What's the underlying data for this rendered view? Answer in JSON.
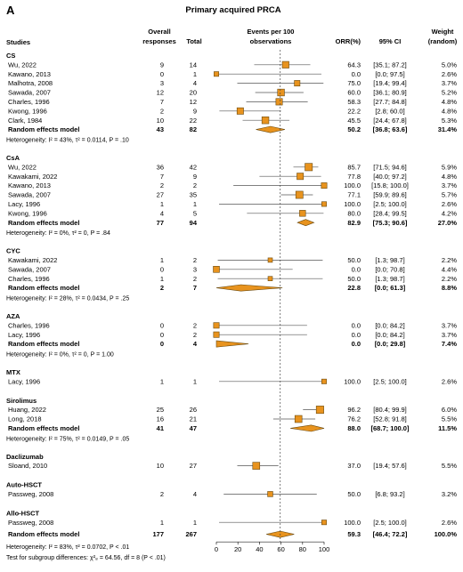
{
  "panel_letter": "A",
  "chart_data": {
    "type": "forest",
    "title": "Primary acquired PRCA",
    "headers": {
      "studies": "Studies",
      "overall_1": "Overall",
      "overall_2": "responses",
      "total": "Total",
      "events_1": "Events per 100",
      "events_2": "observations",
      "orr": "ORR(%)",
      "ci": "95% CI",
      "weight_1": "Weight",
      "weight_2": "(random)"
    },
    "x_axis": {
      "xlim": [
        0,
        100
      ],
      "ticks": [
        "0",
        "20",
        "40",
        "60",
        "80",
        "100"
      ],
      "reference_line": 59.3
    },
    "groups": [
      {
        "name": "CS",
        "studies": [
          {
            "study": "Wu, 2022",
            "events": "9",
            "total": "14",
            "orr": "64.3",
            "ci": "[35.1; 87.2]",
            "weight": "5.0%",
            "est": 64.3,
            "lo": 35.1,
            "hi": 87.2
          },
          {
            "study": "Kawano, 2013",
            "events": "0",
            "total": "1",
            "orr": "0.0",
            "ci": "[0.0; 97.5]",
            "weight": "2.6%",
            "est": 0.0,
            "lo": 0.0,
            "hi": 97.5
          },
          {
            "study": "Malhotra, 2008",
            "events": "3",
            "total": "4",
            "orr": "75.0",
            "ci": "[19.4; 99.4]",
            "weight": "3.7%",
            "est": 75.0,
            "lo": 19.4,
            "hi": 99.4
          },
          {
            "study": "Sawada, 2007",
            "events": "12",
            "total": "20",
            "orr": "60.0",
            "ci": "[36.1; 80.9]",
            "weight": "5.2%",
            "est": 60.0,
            "lo": 36.1,
            "hi": 80.9
          },
          {
            "study": "Charles, 1996",
            "events": "7",
            "total": "12",
            "orr": "58.3",
            "ci": "[27.7; 84.8]",
            "weight": "4.8%",
            "est": 58.3,
            "lo": 27.7,
            "hi": 84.8
          },
          {
            "study": "Kwong, 1996",
            "events": "2",
            "total": "9",
            "orr": "22.2",
            "ci": "[2.8; 60.0]",
            "weight": "4.8%",
            "est": 22.2,
            "lo": 2.8,
            "hi": 60.0
          },
          {
            "study": "Clark, 1984",
            "events": "10",
            "total": "22",
            "orr": "45.5",
            "ci": "[24.4; 67.8]",
            "weight": "5.3%",
            "est": 45.5,
            "lo": 24.4,
            "hi": 67.8
          }
        ],
        "pooled": {
          "label": "Random effects model",
          "events": "43",
          "total": "82",
          "orr": "50.2",
          "ci": "[36.8; 63.6]",
          "weight": "31.4%",
          "est": 50.2,
          "lo": 36.8,
          "hi": 63.6
        },
        "heterogeneity": "Heterogeneity: I² = 43%, τ² = 0.0114, P = .10"
      },
      {
        "name": "CsA",
        "studies": [
          {
            "study": "Wu, 2022",
            "events": "36",
            "total": "42",
            "orr": "85.7",
            "ci": "[71.5; 94.6]",
            "weight": "5.9%",
            "est": 85.7,
            "lo": 71.5,
            "hi": 94.6
          },
          {
            "study": "Kawakami, 2022",
            "events": "7",
            "total": "9",
            "orr": "77.8",
            "ci": "[40.0; 97.2]",
            "weight": "4.8%",
            "est": 77.8,
            "lo": 40.0,
            "hi": 97.2
          },
          {
            "study": "Kawano, 2013",
            "events": "2",
            "total": "2",
            "orr": "100.0",
            "ci": "[15.8; 100.0]",
            "weight": "3.7%",
            "est": 100.0,
            "lo": 15.8,
            "hi": 100.0
          },
          {
            "study": "Sawada, 2007",
            "events": "27",
            "total": "35",
            "orr": "77.1",
            "ci": "[59.9; 89.6]",
            "weight": "5.7%",
            "est": 77.1,
            "lo": 59.9,
            "hi": 89.6
          },
          {
            "study": "Lacy, 1996",
            "events": "1",
            "total": "1",
            "orr": "100.0",
            "ci": "[2.5; 100.0]",
            "weight": "2.6%",
            "est": 100.0,
            "lo": 2.5,
            "hi": 100.0
          },
          {
            "study": "Kwong, 1996",
            "events": "4",
            "total": "5",
            "orr": "80.0",
            "ci": "[28.4; 99.5]",
            "weight": "4.2%",
            "est": 80.0,
            "lo": 28.4,
            "hi": 99.5
          }
        ],
        "pooled": {
          "label": "Random effects model",
          "events": "77",
          "total": "94",
          "orr": "82.9",
          "ci": "[75.3; 90.6]",
          "weight": "27.0%",
          "est": 82.9,
          "lo": 75.3,
          "hi": 90.6
        },
        "heterogeneity": "Heterogeneity: I² = 0%, τ² = 0, P = .84"
      },
      {
        "name": "CYC",
        "studies": [
          {
            "study": "Kawakami, 2022",
            "events": "1",
            "total": "2",
            "orr": "50.0",
            "ci": "[1.3; 98.7]",
            "weight": "2.2%",
            "est": 50.0,
            "lo": 1.3,
            "hi": 98.7
          },
          {
            "study": "Sawada, 2007",
            "events": "0",
            "total": "3",
            "orr": "0.0",
            "ci": "[0.0; 70.8]",
            "weight": "4.4%",
            "est": 0.0,
            "lo": 0.0,
            "hi": 70.8
          },
          {
            "study": "Charles, 1996",
            "events": "1",
            "total": "2",
            "orr": "50.0",
            "ci": "[1.3; 98.7]",
            "weight": "2.2%",
            "est": 50.0,
            "lo": 1.3,
            "hi": 98.7
          }
        ],
        "pooled": {
          "label": "Random effects model",
          "events": "2",
          "total": "7",
          "orr": "22.8",
          "ci": "[0.0; 61.3]",
          "weight": "8.8%",
          "est": 22.8,
          "lo": 0.0,
          "hi": 61.3
        },
        "heterogeneity": "Heterogeneity: I² = 28%, τ² = 0.0434, P = .25"
      },
      {
        "name": "AZA",
        "studies": [
          {
            "study": "Charles, 1996",
            "events": "0",
            "total": "2",
            "orr": "0.0",
            "ci": "[0.0; 84.2]",
            "weight": "3.7%",
            "est": 0.0,
            "lo": 0.0,
            "hi": 84.2
          },
          {
            "study": "Lacy, 1996",
            "events": "0",
            "total": "2",
            "orr": "0.0",
            "ci": "[0.0; 84.2]",
            "weight": "3.7%",
            "est": 0.0,
            "lo": 0.0,
            "hi": 84.2
          }
        ],
        "pooled": {
          "label": "Random effects model",
          "events": "0",
          "total": "4",
          "orr": "0.0",
          "ci": "[0.0; 29.8]",
          "weight": "7.4%",
          "est": 0.0,
          "lo": 0.0,
          "hi": 29.8
        },
        "heterogeneity": "Heterogeneity: I² = 0%, τ² = 0, P = 1.00"
      },
      {
        "name": "MTX",
        "studies": [
          {
            "study": "Lacy, 1996",
            "events": "1",
            "total": "1",
            "orr": "100.0",
            "ci": "[2.5; 100.0]",
            "weight": "2.6%",
            "est": 100.0,
            "lo": 2.5,
            "hi": 100.0
          }
        ],
        "pooled": null,
        "heterogeneity": ""
      },
      {
        "name": "Sirolimus",
        "studies": [
          {
            "study": "Huang, 2022",
            "events": "25",
            "total": "26",
            "orr": "96.2",
            "ci": "[80.4; 99.9]",
            "weight": "6.0%",
            "est": 96.2,
            "lo": 80.4,
            "hi": 99.9
          },
          {
            "study": "Long, 2018",
            "events": "16",
            "total": "21",
            "orr": "76.2",
            "ci": "[52.8; 91.8]",
            "weight": "5.5%",
            "est": 76.2,
            "lo": 52.8,
            "hi": 91.8
          }
        ],
        "pooled": {
          "label": "Random effects model",
          "events": "41",
          "total": "47",
          "orr": "88.0",
          "ci": "[68.7; 100.0]",
          "weight": "11.5%",
          "est": 88.0,
          "lo": 68.7,
          "hi": 100.0
        },
        "heterogeneity": "Heterogeneity: I² = 75%, τ² = 0.0149, P = .05"
      },
      {
        "name": "Daclizumab",
        "studies": [
          {
            "study": "Sloand, 2010",
            "events": "10",
            "total": "27",
            "orr": "37.0",
            "ci": "[19.4; 57.6]",
            "weight": "5.5%",
            "est": 37.0,
            "lo": 19.4,
            "hi": 57.6
          }
        ],
        "pooled": null,
        "heterogeneity": ""
      },
      {
        "name": "Auto-HSCT",
        "studies": [
          {
            "study": "Passweg, 2008",
            "events": "2",
            "total": "4",
            "orr": "50.0",
            "ci": "[6.8; 93.2]",
            "weight": "3.2%",
            "est": 50.0,
            "lo": 6.8,
            "hi": 93.2
          }
        ],
        "pooled": null,
        "heterogeneity": ""
      },
      {
        "name": "Allo-HSCT",
        "studies": [
          {
            "study": "Passweg, 2008",
            "events": "1",
            "total": "1",
            "orr": "100.0",
            "ci": "[2.5; 100.0]",
            "weight": "2.6%",
            "est": 100.0,
            "lo": 2.5,
            "hi": 100.0
          }
        ],
        "pooled": null,
        "heterogeneity": ""
      }
    ],
    "overall": {
      "label": "Random effects model",
      "events": "177",
      "total": "267",
      "orr": "59.3",
      "ci": "[46.4; 72.2]",
      "weight": "100.0%",
      "est": 59.3,
      "lo": 46.4,
      "hi": 72.2
    },
    "overall_heterogeneity": "Heterogeneity: I² = 83%, τ² = 0.0702, P < .01",
    "subgroup_test": "Test for subgroup differences: χ²₈ = 64.56, df = 8 (P < .01)",
    "colors": {
      "marker": "#e8931e",
      "marker_stroke": "#6a4a10",
      "line": "#555555",
      "ref_line": "#444444"
    }
  }
}
